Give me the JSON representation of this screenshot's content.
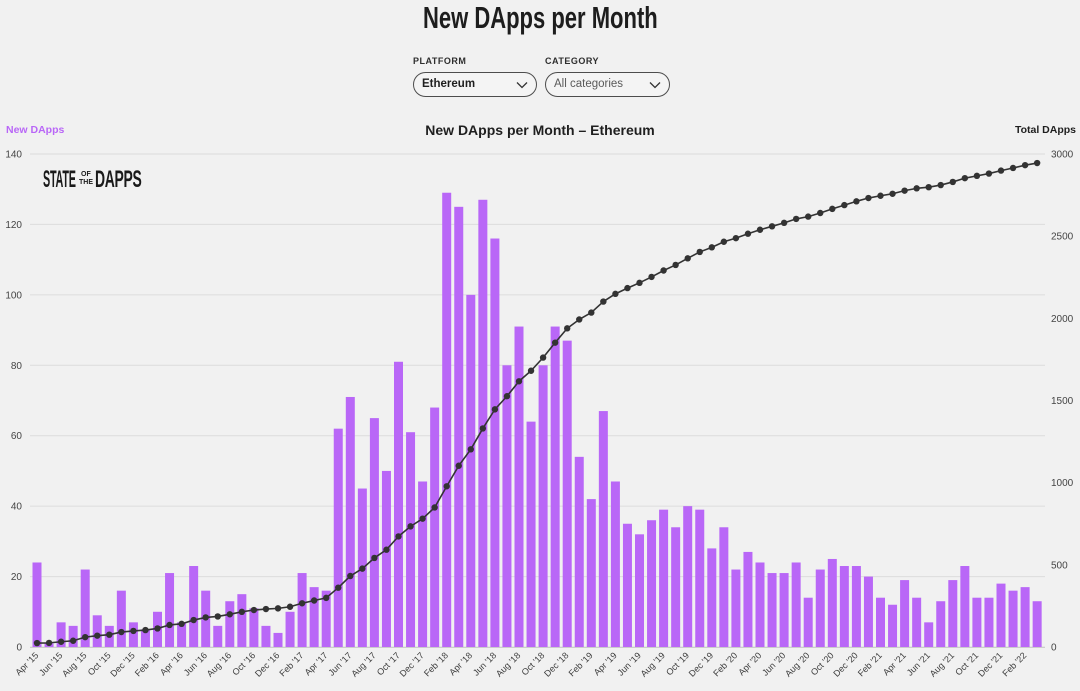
{
  "header": {
    "title": "New DApps per Month"
  },
  "filters": {
    "platform": {
      "label": "PLATFORM",
      "value": "Ethereum"
    },
    "category": {
      "label": "CATEGORY",
      "value": "All categories"
    }
  },
  "logo": {
    "word_left": "STATE",
    "small_top": "OF",
    "small_bottom": "THE",
    "word_right": "DAPPS"
  },
  "icons": {
    "dropdown": "chevron-down-icon"
  },
  "colors": {
    "background": "#f1f1f1",
    "accent": "#b967f7",
    "text": "#222222"
  },
  "chart_data": {
    "type": "bar",
    "title": "New DApps per Month – Ethereum",
    "ylabel": "New DApps",
    "y2label": "Total DApps",
    "ylim": [
      0,
      140
    ],
    "y2lim": [
      0,
      3000
    ],
    "y_ticks": [
      0,
      20,
      40,
      60,
      80,
      100,
      120,
      140
    ],
    "y2_ticks": [
      0,
      500,
      1000,
      1500,
      2000,
      2500,
      3000
    ],
    "grid": true,
    "x_tick_labels": [
      "Apr '15",
      "Jun '15",
      "Aug '15",
      "Oct '15",
      "Dec '15",
      "Feb '16",
      "Apr '16",
      "Jun '16",
      "Aug '16",
      "Oct '16",
      "Dec '16",
      "Feb '17",
      "Apr '17",
      "Jun '17",
      "Aug '17",
      "Oct '17",
      "Dec '17",
      "Feb '18",
      "Apr '18",
      "Jun '18",
      "Aug '18",
      "Oct '18",
      "Dec '18",
      "Feb '19",
      "Apr '19",
      "Jun '19",
      "Aug '19",
      "Oct '19",
      "Dec '19",
      "Feb '20",
      "Apr '20",
      "Jun '20",
      "Aug '20",
      "Oct '20",
      "Dec '20",
      "Feb '21",
      "Apr '21",
      "Jun '21",
      "Aug '21",
      "Oct '21",
      "Dec '21",
      "Feb '22"
    ],
    "series": [
      {
        "type": "bar",
        "axis": "left",
        "color": "#b967f7",
        "values": [
          24,
          1,
          7,
          6,
          22,
          9,
          6,
          16,
          7,
          5,
          10,
          21,
          7,
          23,
          16,
          6,
          13,
          15,
          11,
          6,
          4,
          10,
          21,
          17,
          16,
          62,
          71,
          45,
          65,
          50,
          81,
          61,
          47,
          68,
          129,
          125,
          100,
          127,
          116,
          80,
          91,
          64,
          80,
          91,
          87,
          54,
          42,
          67,
          47,
          35,
          32,
          36,
          39,
          34,
          40,
          39,
          28,
          34,
          22,
          27,
          24,
          21,
          21,
          24,
          14,
          22,
          25,
          23,
          23,
          20,
          14,
          12,
          19,
          14,
          7,
          13,
          19,
          23,
          14,
          14,
          18,
          16,
          17,
          13
        ]
      },
      {
        "type": "line",
        "axis": "right",
        "color": "#333333",
        "markers": true,
        "values": [
          24,
          25,
          32,
          38,
          60,
          69,
          75,
          91,
          98,
          103,
          113,
          134,
          141,
          164,
          180,
          186,
          199,
          214,
          225,
          231,
          235,
          245,
          266,
          283,
          299,
          361,
          432,
          477,
          542,
          592,
          673,
          734,
          781,
          849,
          978,
          1103,
          1203,
          1330,
          1446,
          1526,
          1617,
          1681,
          1761,
          1852,
          1939,
          1993,
          2035,
          2102,
          2149,
          2184,
          2216,
          2252,
          2291,
          2325,
          2365,
          2404,
          2432,
          2466,
          2488,
          2515,
          2539,
          2560,
          2581,
          2605,
          2619,
          2641,
          2666,
          2689,
          2712,
          2732,
          2746,
          2758,
          2777,
          2791,
          2798,
          2811,
          2830,
          2853,
          2867,
          2881,
          2899,
          2915,
          2932,
          2945
        ]
      }
    ]
  }
}
